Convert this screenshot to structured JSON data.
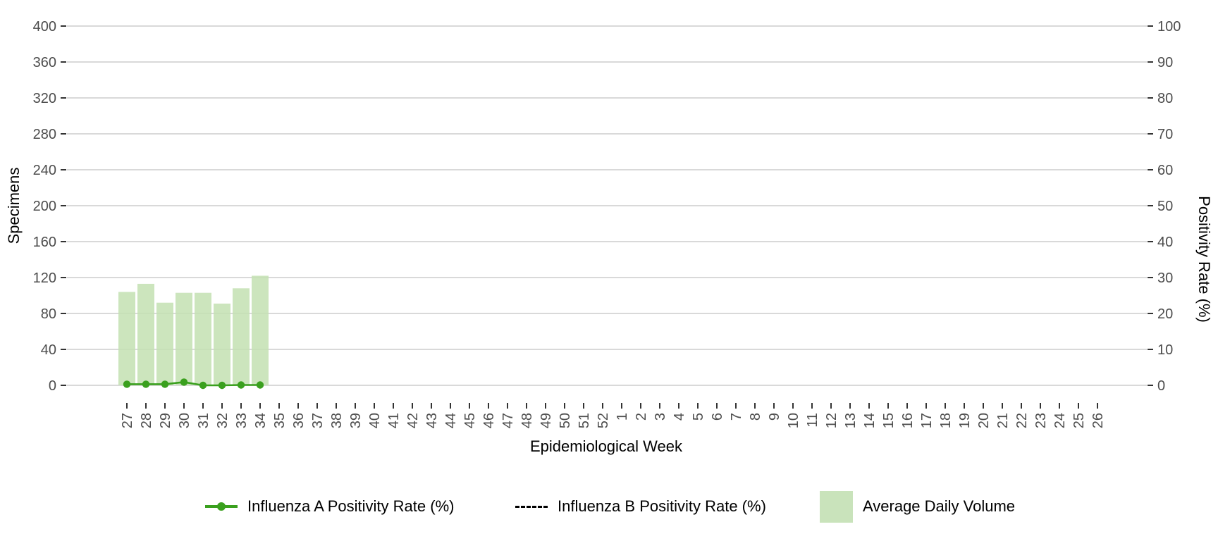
{
  "colors": {
    "background": "#ffffff",
    "gridline": "#d9d9d9",
    "tick_mark": "#333333",
    "tick_label": "#4d4d4d",
    "axis_title": "#000000",
    "bar_fill": "#c3e0b2",
    "bar_fill_legend": "#c9e3bb",
    "influenza_a_green": "#3aa01e",
    "influenza_b_black": "#000000"
  },
  "legend": {
    "items": [
      {
        "key_icon": "green-line-dot-icon",
        "label": "Influenza A Positivity Rate (%)"
      },
      {
        "key_icon": "black-dashed-line-icon",
        "label": "Influenza B Positivity Rate (%)"
      },
      {
        "key_icon": "green-square-swatch",
        "label": "Average Daily Volume"
      }
    ]
  },
  "chart_data": {
    "type": "mixed-bar-line",
    "title": "",
    "xlabel": "Epidemiological Week",
    "ylabel_left": "Specimens",
    "ylabel_right": "Positivity Rate (%)",
    "ylim_left": [
      0,
      400
    ],
    "ylim_right": [
      0,
      100
    ],
    "left_axis_ticks": [
      0,
      40,
      80,
      120,
      160,
      200,
      240,
      280,
      320,
      360,
      400
    ],
    "right_axis_ticks": [
      0,
      10,
      20,
      30,
      40,
      50,
      60,
      70,
      80,
      90,
      100
    ],
    "grid": "horizontal-only",
    "legend_position": "bottom",
    "x_categories": [
      "27",
      "28",
      "29",
      "30",
      "31",
      "32",
      "33",
      "34",
      "35",
      "36",
      "37",
      "38",
      "39",
      "40",
      "41",
      "42",
      "43",
      "44",
      "45",
      "46",
      "47",
      "48",
      "49",
      "50",
      "51",
      "52",
      "1",
      "2",
      "3",
      "4",
      "5",
      "6",
      "7",
      "8",
      "9",
      "10",
      "11",
      "12",
      "13",
      "14",
      "15",
      "16",
      "17",
      "18",
      "19",
      "20",
      "21",
      "22",
      "23",
      "24",
      "25",
      "26"
    ],
    "series": [
      {
        "name": "Average Daily Volume",
        "type": "bar",
        "axis": "left",
        "weeks": [
          "27",
          "28",
          "29",
          "30",
          "31",
          "32",
          "33",
          "34"
        ],
        "values": [
          104,
          113,
          92,
          103,
          103,
          91,
          108,
          122
        ]
      },
      {
        "name": "Influenza A Positivity Rate (%)",
        "type": "line",
        "axis": "right",
        "weeks": [
          "27",
          "28",
          "29",
          "30",
          "31",
          "32",
          "33",
          "34"
        ],
        "values": [
          0.3,
          0.3,
          0.3,
          0.9,
          0,
          0,
          0.1,
          0.1
        ]
      },
      {
        "name": "Influenza B Positivity Rate (%)",
        "type": "dashed-line",
        "axis": "right",
        "weeks": [],
        "values": []
      }
    ]
  }
}
